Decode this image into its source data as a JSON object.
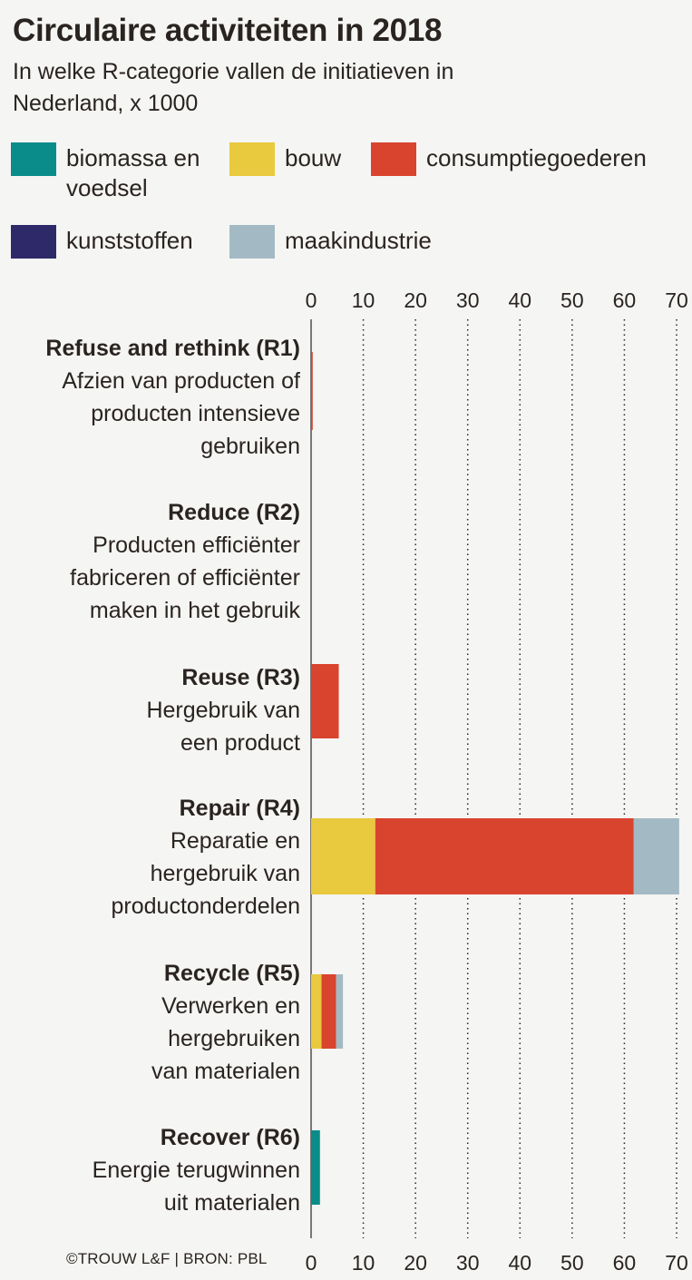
{
  "title": "Circulaire activiteiten in 2018",
  "subtitle": "In welke R-categorie vallen de initiatieven in Nederland, x 1000",
  "source": "©TROUW L&F | BRON: PBL",
  "legend": [
    {
      "label": "biomassa en voedsel",
      "color": "#0a8c8a"
    },
    {
      "label": "bouw",
      "color": "#e9c93e"
    },
    {
      "label": "consumptiegoederen",
      "color": "#d9442f"
    },
    {
      "label": "kunststoffen",
      "color": "#2e2a6a"
    },
    {
      "label": "maakindustrie",
      "color": "#a3bac4"
    }
  ],
  "chart_data": {
    "type": "bar",
    "orientation": "horizontal",
    "stacked": true,
    "title": "Circulaire activiteiten in 2018",
    "subtitle": "In welke R-categorie vallen de initiatieven in Nederland, x 1000",
    "xlim": [
      0,
      70
    ],
    "xticks": [
      0,
      10,
      20,
      30,
      40,
      50,
      60,
      70
    ],
    "grid": "vertical dotted",
    "legend_position": "top",
    "categories": [
      {
        "name": "Refuse and rethink (R1)",
        "desc": [
          "Afzien van producten of",
          "producten intensieve",
          "gebruiken"
        ]
      },
      {
        "name": "Reduce (R2)",
        "desc": [
          "Producten efficiënter",
          "fabriceren of efficiënter",
          "maken in het gebruik"
        ]
      },
      {
        "name": "Reuse (R3)",
        "desc": [
          "Hergebruik van",
          "een product"
        ]
      },
      {
        "name": "Repair (R4)",
        "desc": [
          "Reparatie en",
          "hergebruik van",
          "productonderdelen"
        ]
      },
      {
        "name": "Recycle (R5)",
        "desc": [
          "Verwerken en",
          "hergebruiken",
          "van materialen"
        ]
      },
      {
        "name": "Recover (R6)",
        "desc": [
          "Energie terugwinnen",
          "uit materialen"
        ]
      }
    ],
    "series": [
      {
        "name": "biomassa en voedsel",
        "color": "#0a8c8a",
        "values": [
          0,
          0,
          0,
          0,
          0,
          1.7
        ]
      },
      {
        "name": "bouw",
        "color": "#e9c93e",
        "values": [
          0,
          0,
          0,
          12.3,
          2.0,
          0
        ]
      },
      {
        "name": "consumptiegoederen",
        "color": "#d9442f",
        "values": [
          0.3,
          0,
          5.3,
          49.5,
          2.8,
          0
        ]
      },
      {
        "name": "kunststoffen",
        "color": "#2e2a6a",
        "values": [
          0,
          0,
          0,
          0,
          0,
          0
        ]
      },
      {
        "name": "maakindustrie",
        "color": "#a3bac4",
        "values": [
          0,
          0,
          0,
          8.7,
          1.3,
          0
        ]
      }
    ]
  }
}
